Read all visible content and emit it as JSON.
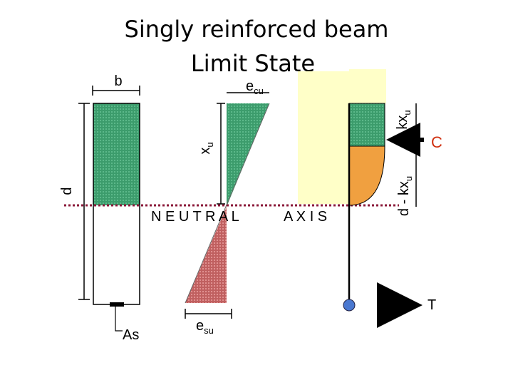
{
  "title": {
    "line1": "Singly reinforced beam",
    "line2": "Limit State"
  },
  "labels": {
    "b": "b",
    "d": "d",
    "ecu": {
      "base": "e",
      "sub": "cu"
    },
    "xu": {
      "base": "x",
      "sub": "u"
    },
    "esu": {
      "base": "e",
      "sub": "su"
    },
    "kxu": {
      "base": "kx",
      "sub": "u"
    },
    "dkxu": {
      "base": "d - kx",
      "sub": "u"
    },
    "c": "C",
    "t": "T",
    "as": "As",
    "neutral": "N E U T R A L",
    "axis": "A X I S"
  }
}
